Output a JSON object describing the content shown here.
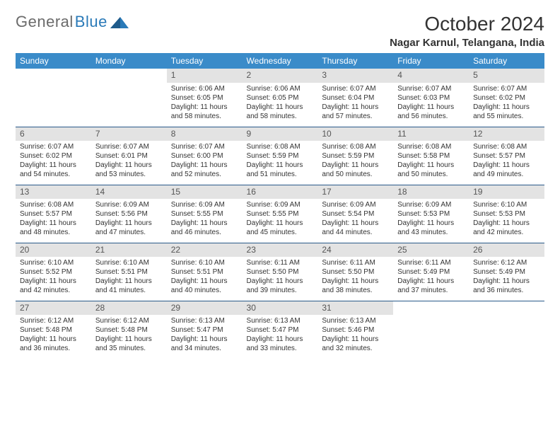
{
  "brand": {
    "part1": "General",
    "part2": "Blue"
  },
  "title": "October 2024",
  "location": "Nagar Karnul, Telangana, India",
  "colors": {
    "header_bg": "#3a8bc9",
    "header_text": "#ffffff",
    "daynum_bg": "#e3e3e3",
    "row_border": "#2a5a8a",
    "brand_grey": "#6b6b6b",
    "brand_blue": "#2a7ab8",
    "text": "#333333",
    "background": "#ffffff"
  },
  "typography": {
    "title_fontsize": 28,
    "location_fontsize": 15,
    "dayheader_fontsize": 12,
    "cell_fontsize": 10
  },
  "day_headers": [
    "Sunday",
    "Monday",
    "Tuesday",
    "Wednesday",
    "Thursday",
    "Friday",
    "Saturday"
  ],
  "weeks": [
    [
      null,
      null,
      {
        "n": "1",
        "sr": "Sunrise: 6:06 AM",
        "ss": "Sunset: 6:05 PM",
        "d1": "Daylight: 11 hours",
        "d2": "and 58 minutes."
      },
      {
        "n": "2",
        "sr": "Sunrise: 6:06 AM",
        "ss": "Sunset: 6:05 PM",
        "d1": "Daylight: 11 hours",
        "d2": "and 58 minutes."
      },
      {
        "n": "3",
        "sr": "Sunrise: 6:07 AM",
        "ss": "Sunset: 6:04 PM",
        "d1": "Daylight: 11 hours",
        "d2": "and 57 minutes."
      },
      {
        "n": "4",
        "sr": "Sunrise: 6:07 AM",
        "ss": "Sunset: 6:03 PM",
        "d1": "Daylight: 11 hours",
        "d2": "and 56 minutes."
      },
      {
        "n": "5",
        "sr": "Sunrise: 6:07 AM",
        "ss": "Sunset: 6:02 PM",
        "d1": "Daylight: 11 hours",
        "d2": "and 55 minutes."
      }
    ],
    [
      {
        "n": "6",
        "sr": "Sunrise: 6:07 AM",
        "ss": "Sunset: 6:02 PM",
        "d1": "Daylight: 11 hours",
        "d2": "and 54 minutes."
      },
      {
        "n": "7",
        "sr": "Sunrise: 6:07 AM",
        "ss": "Sunset: 6:01 PM",
        "d1": "Daylight: 11 hours",
        "d2": "and 53 minutes."
      },
      {
        "n": "8",
        "sr": "Sunrise: 6:07 AM",
        "ss": "Sunset: 6:00 PM",
        "d1": "Daylight: 11 hours",
        "d2": "and 52 minutes."
      },
      {
        "n": "9",
        "sr": "Sunrise: 6:08 AM",
        "ss": "Sunset: 5:59 PM",
        "d1": "Daylight: 11 hours",
        "d2": "and 51 minutes."
      },
      {
        "n": "10",
        "sr": "Sunrise: 6:08 AM",
        "ss": "Sunset: 5:59 PM",
        "d1": "Daylight: 11 hours",
        "d2": "and 50 minutes."
      },
      {
        "n": "11",
        "sr": "Sunrise: 6:08 AM",
        "ss": "Sunset: 5:58 PM",
        "d1": "Daylight: 11 hours",
        "d2": "and 50 minutes."
      },
      {
        "n": "12",
        "sr": "Sunrise: 6:08 AM",
        "ss": "Sunset: 5:57 PM",
        "d1": "Daylight: 11 hours",
        "d2": "and 49 minutes."
      }
    ],
    [
      {
        "n": "13",
        "sr": "Sunrise: 6:08 AM",
        "ss": "Sunset: 5:57 PM",
        "d1": "Daylight: 11 hours",
        "d2": "and 48 minutes."
      },
      {
        "n": "14",
        "sr": "Sunrise: 6:09 AM",
        "ss": "Sunset: 5:56 PM",
        "d1": "Daylight: 11 hours",
        "d2": "and 47 minutes."
      },
      {
        "n": "15",
        "sr": "Sunrise: 6:09 AM",
        "ss": "Sunset: 5:55 PM",
        "d1": "Daylight: 11 hours",
        "d2": "and 46 minutes."
      },
      {
        "n": "16",
        "sr": "Sunrise: 6:09 AM",
        "ss": "Sunset: 5:55 PM",
        "d1": "Daylight: 11 hours",
        "d2": "and 45 minutes."
      },
      {
        "n": "17",
        "sr": "Sunrise: 6:09 AM",
        "ss": "Sunset: 5:54 PM",
        "d1": "Daylight: 11 hours",
        "d2": "and 44 minutes."
      },
      {
        "n": "18",
        "sr": "Sunrise: 6:09 AM",
        "ss": "Sunset: 5:53 PM",
        "d1": "Daylight: 11 hours",
        "d2": "and 43 minutes."
      },
      {
        "n": "19",
        "sr": "Sunrise: 6:10 AM",
        "ss": "Sunset: 5:53 PM",
        "d1": "Daylight: 11 hours",
        "d2": "and 42 minutes."
      }
    ],
    [
      {
        "n": "20",
        "sr": "Sunrise: 6:10 AM",
        "ss": "Sunset: 5:52 PM",
        "d1": "Daylight: 11 hours",
        "d2": "and 42 minutes."
      },
      {
        "n": "21",
        "sr": "Sunrise: 6:10 AM",
        "ss": "Sunset: 5:51 PM",
        "d1": "Daylight: 11 hours",
        "d2": "and 41 minutes."
      },
      {
        "n": "22",
        "sr": "Sunrise: 6:10 AM",
        "ss": "Sunset: 5:51 PM",
        "d1": "Daylight: 11 hours",
        "d2": "and 40 minutes."
      },
      {
        "n": "23",
        "sr": "Sunrise: 6:11 AM",
        "ss": "Sunset: 5:50 PM",
        "d1": "Daylight: 11 hours",
        "d2": "and 39 minutes."
      },
      {
        "n": "24",
        "sr": "Sunrise: 6:11 AM",
        "ss": "Sunset: 5:50 PM",
        "d1": "Daylight: 11 hours",
        "d2": "and 38 minutes."
      },
      {
        "n": "25",
        "sr": "Sunrise: 6:11 AM",
        "ss": "Sunset: 5:49 PM",
        "d1": "Daylight: 11 hours",
        "d2": "and 37 minutes."
      },
      {
        "n": "26",
        "sr": "Sunrise: 6:12 AM",
        "ss": "Sunset: 5:49 PM",
        "d1": "Daylight: 11 hours",
        "d2": "and 36 minutes."
      }
    ],
    [
      {
        "n": "27",
        "sr": "Sunrise: 6:12 AM",
        "ss": "Sunset: 5:48 PM",
        "d1": "Daylight: 11 hours",
        "d2": "and 36 minutes."
      },
      {
        "n": "28",
        "sr": "Sunrise: 6:12 AM",
        "ss": "Sunset: 5:48 PM",
        "d1": "Daylight: 11 hours",
        "d2": "and 35 minutes."
      },
      {
        "n": "29",
        "sr": "Sunrise: 6:13 AM",
        "ss": "Sunset: 5:47 PM",
        "d1": "Daylight: 11 hours",
        "d2": "and 34 minutes."
      },
      {
        "n": "30",
        "sr": "Sunrise: 6:13 AM",
        "ss": "Sunset: 5:47 PM",
        "d1": "Daylight: 11 hours",
        "d2": "and 33 minutes."
      },
      {
        "n": "31",
        "sr": "Sunrise: 6:13 AM",
        "ss": "Sunset: 5:46 PM",
        "d1": "Daylight: 11 hours",
        "d2": "and 32 minutes."
      },
      null,
      null
    ]
  ]
}
